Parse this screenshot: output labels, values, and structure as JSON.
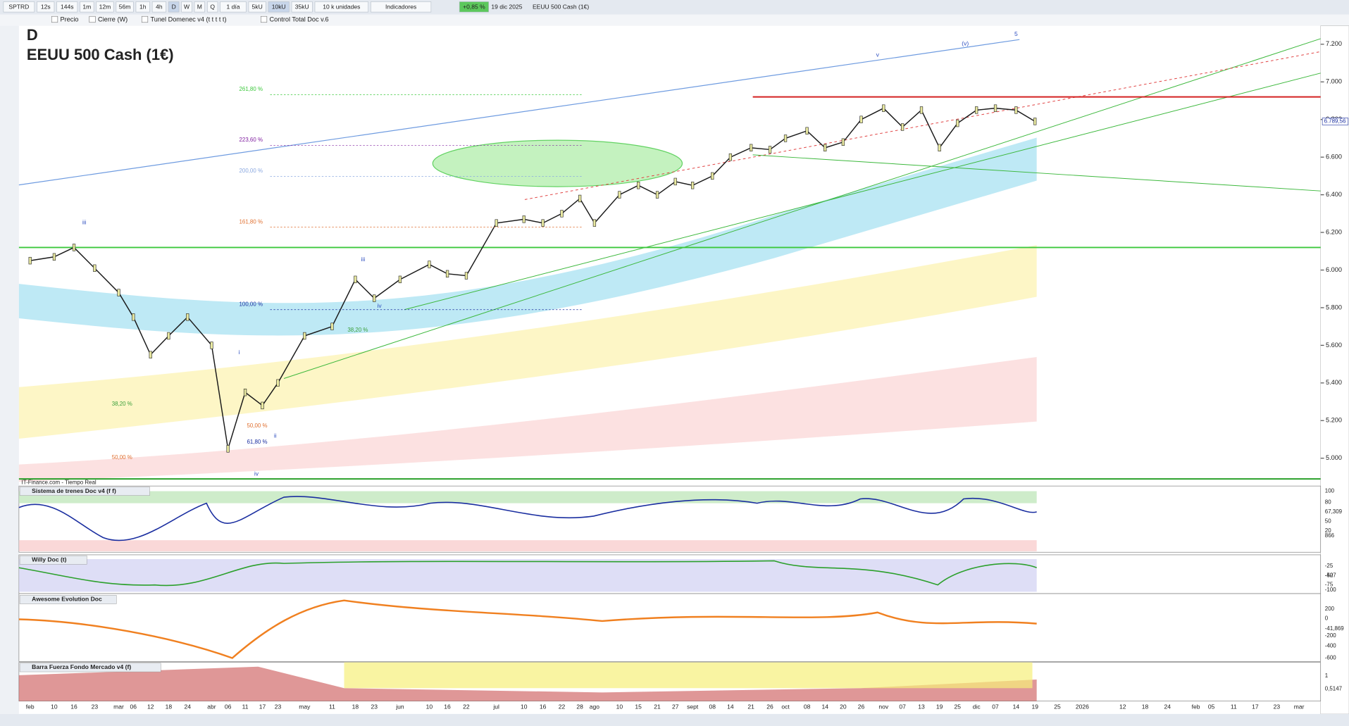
{
  "toolbar": {
    "symbol": "SPTRD",
    "timeframes": [
      "12s",
      "144s",
      "1m",
      "12m",
      "56m",
      "1h",
      "4h",
      "D",
      "W",
      "M",
      "Q"
    ],
    "period": "1 día",
    "units": [
      "5kU",
      "10kU",
      "35kU"
    ],
    "units_menu": "10 k unidades",
    "indicators": "Indicadores",
    "change": "+0,85 %",
    "date": "19 dic 2025",
    "instrument": "EEUU 500 Cash (1€)"
  },
  "legend": [
    "Precio",
    "Cierre (W)",
    "Tunel Domenec v4 (t t t t t)",
    "Control Total Doc v.6"
  ],
  "chart_data": {
    "type": "line",
    "timeframe": "D",
    "title": "EEUU 500 Cash (1€)",
    "source": "IT-Finance.com - Tiempo Real",
    "categories": [
      "feb",
      "10",
      "16",
      "23",
      "mar",
      "06",
      "12",
      "18",
      "24",
      "abr",
      "06",
      "11",
      "17",
      "23",
      "may",
      "11",
      "18",
      "23",
      "jun",
      "10",
      "16",
      "22",
      "jul",
      "10",
      "16",
      "22",
      "28",
      "ago",
      "10",
      "15",
      "21",
      "27",
      "sept",
      "08",
      "14",
      "21",
      "26",
      "oct",
      "08",
      "14",
      "20",
      "26",
      "nov",
      "07",
      "13",
      "19",
      "25",
      "dic",
      "07",
      "14",
      "19",
      "25",
      "2026",
      "12",
      "18",
      "24",
      "feb",
      "05",
      "11",
      "17",
      "23",
      "mar"
    ],
    "values": [
      6050,
      6070,
      6120,
      6010,
      5880,
      5750,
      5550,
      5650,
      5750,
      5600,
      5050,
      5350,
      5280,
      5400,
      5650,
      5700,
      5950,
      5850,
      5950,
      6030,
      5980,
      5970,
      6250,
      6270,
      6250,
      6300,
      6380,
      6250,
      6400,
      6450,
      6400,
      6470,
      6450,
      6500,
      6600,
      6650,
      6640,
      6700,
      6740,
      6650,
      6680,
      6800,
      6860,
      6760,
      6850,
      6650,
      6780,
      6850,
      6860,
      6850,
      6790,
      null,
      null,
      null,
      null,
      null,
      null,
      null,
      null,
      null,
      null,
      null
    ],
    "color": "#1a1a1a",
    "ylim": [
      4866,
      7298
    ],
    "yticks": [
      {
        "value": 5000,
        "label": "5.000"
      },
      {
        "value": 5200,
        "label": "5.200"
      },
      {
        "value": 5400,
        "label": "5.400"
      },
      {
        "value": 5600,
        "label": "5.600"
      },
      {
        "value": 5800,
        "label": "5.800"
      },
      {
        "value": 6000,
        "label": "6.000"
      },
      {
        "value": 6200,
        "label": "6.200"
      },
      {
        "value": 6400,
        "label": "6.400"
      },
      {
        "value": 6600,
        "label": "6.600"
      },
      {
        "value": 6800,
        "label": "6.800"
      },
      {
        "value": 7000,
        "label": "7.000"
      },
      {
        "value": 7200,
        "label": "7.200"
      }
    ],
    "last_price": {
      "value": 6789.56,
      "label": "6.789,56"
    },
    "levels": [
      {
        "value": 6920,
        "color": "#d42020"
      },
      {
        "value": 6120,
        "color": "#3cc83c"
      },
      {
        "value": 4890,
        "color": "#2aa02a"
      }
    ],
    "fib_labels": [
      "261,80 %",
      "223,60 %",
      "200,00 %",
      "161,80 %",
      "100,00 %",
      "38,20 %",
      "50,00 %",
      "61,80 %",
      "38,20 %",
      "50,00 %"
    ],
    "wave_labels": [
      "iii",
      "i",
      "ii",
      "iii",
      "iv",
      "iv",
      "v",
      "(v)",
      "5"
    ]
  },
  "panels": [
    {
      "name": "Sistema de trenes Doc v4 (f f)",
      "axis": [
        "100",
        "80",
        "67,309",
        "50",
        "20",
        "866"
      ]
    },
    {
      "name": "Willy Doc (t)",
      "axis": [
        "-25",
        "-427",
        "-50",
        "-75",
        "-100"
      ]
    },
    {
      "name": "Awesome Evolution Doc",
      "axis": [
        "200",
        "0",
        "-41,869",
        "-200",
        "-400",
        "-600"
      ]
    },
    {
      "name": "Barra Fuerza Fondo Mercado v4 (f)",
      "axis": [
        "1",
        "0,5147"
      ]
    }
  ]
}
